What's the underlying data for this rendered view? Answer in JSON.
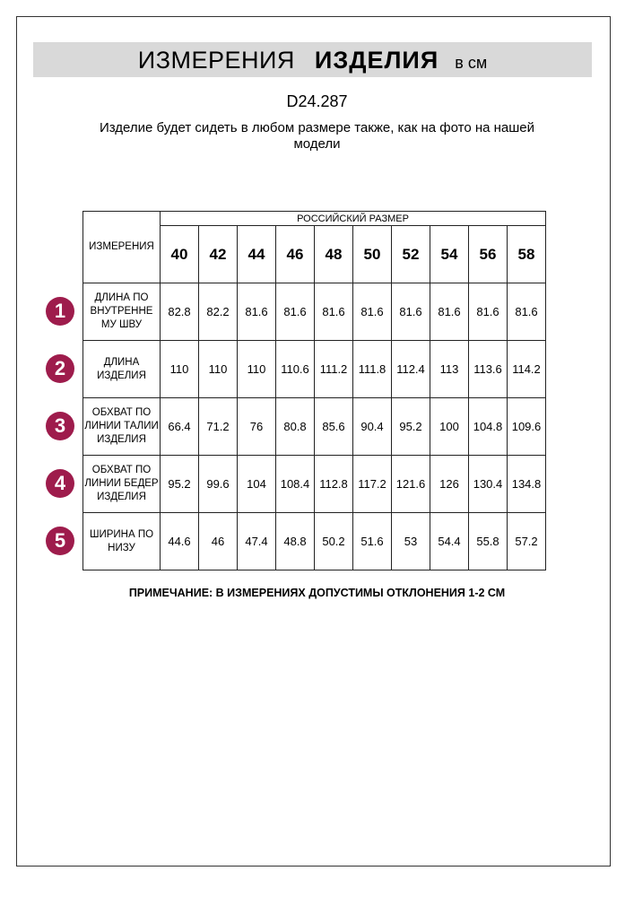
{
  "title": {
    "part1": "ИЗМЕРЕНИЯ",
    "part2": "ИЗДЕЛИЯ",
    "unit": "в см"
  },
  "product_code": "D24.287",
  "subtitle": "Изделие будет сидеть в любом размере также, как на фото на нашей модели",
  "table": {
    "measure_header": "ИЗМЕРЕНИЯ",
    "size_group_header": "РОССИЙСКИЙ РАЗМЕР",
    "sizes": [
      "40",
      "42",
      "44",
      "46",
      "48",
      "50",
      "52",
      "54",
      "56",
      "58"
    ],
    "rows": [
      {
        "num": "1",
        "label": "ДЛИНА ПО ВНУТРЕННЕ МУ ШВУ",
        "values": [
          "82.8",
          "82.2",
          "81.6",
          "81.6",
          "81.6",
          "81.6",
          "81.6",
          "81.6",
          "81.6",
          "81.6"
        ]
      },
      {
        "num": "2",
        "label": "ДЛИНА ИЗДЕЛИЯ",
        "values": [
          "110",
          "110",
          "110",
          "110.6",
          "111.2",
          "111.8",
          "112.4",
          "113",
          "113.6",
          "114.2"
        ]
      },
      {
        "num": "3",
        "label": "ОБХВАТ ПО ЛИНИИ ТАЛИИ ИЗДЕЛИЯ",
        "values": [
          "66.4",
          "71.2",
          "76",
          "80.8",
          "85.6",
          "90.4",
          "95.2",
          "100",
          "104.8",
          "109.6"
        ]
      },
      {
        "num": "4",
        "label": "ОБХВАТ ПО ЛИНИИ БЕДЕР ИЗДЕЛИЯ",
        "values": [
          "95.2",
          "99.6",
          "104",
          "108.4",
          "112.8",
          "117.2",
          "121.6",
          "126",
          "130.4",
          "134.8"
        ]
      },
      {
        "num": "5",
        "label": "ШИРИНА ПО НИЗУ",
        "values": [
          "44.6",
          "46",
          "47.4",
          "48.8",
          "50.2",
          "51.6",
          "53",
          "54.4",
          "55.8",
          "57.2"
        ]
      }
    ]
  },
  "note": "ПРИМЕЧАНИЕ: В ИЗМЕРЕНИЯХ ДОПУСТИМЫ ОТКЛОНЕНИЯ 1-2 СМ",
  "colors": {
    "badge": "#9e1c4c",
    "title_bar": "#d9d9d9"
  }
}
